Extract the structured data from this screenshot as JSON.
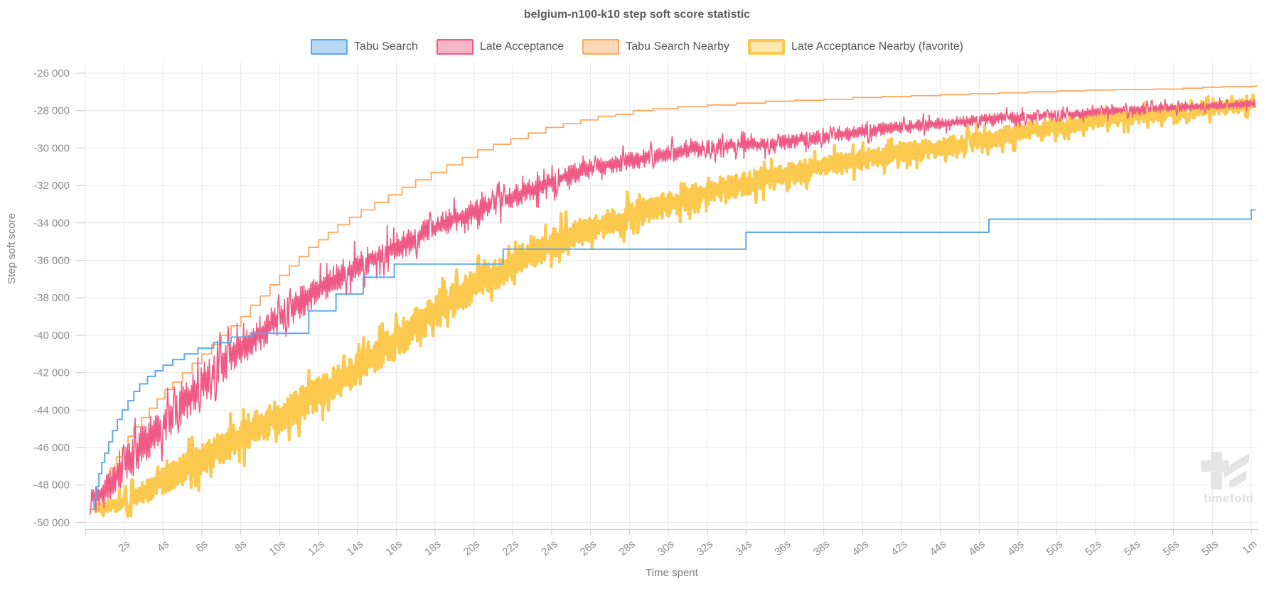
{
  "title": "belgium-n100-k10 step soft score statistic",
  "watermark": {
    "label": "timefold"
  },
  "chart_data": {
    "type": "line",
    "title": "belgium-n100-k10 step soft score statistic",
    "xlabel": "Time spent",
    "ylabel": "Step soft score",
    "xlim": [
      0,
      60.5
    ],
    "ylim": [
      -50000,
      -26000
    ],
    "grid": true,
    "legend_position": "top",
    "y_ticks": [
      {
        "v": -26000,
        "label": "-26 000"
      },
      {
        "v": -28000,
        "label": "-28 000"
      },
      {
        "v": -30000,
        "label": "-30 000"
      },
      {
        "v": -32000,
        "label": "-32 000"
      },
      {
        "v": -34000,
        "label": "-34 000"
      },
      {
        "v": -36000,
        "label": "-36 000"
      },
      {
        "v": -38000,
        "label": "-38 000"
      },
      {
        "v": -40000,
        "label": "-40 000"
      },
      {
        "v": -42000,
        "label": "-42 000"
      },
      {
        "v": -44000,
        "label": "-44 000"
      },
      {
        "v": -46000,
        "label": "-46 000"
      },
      {
        "v": -48000,
        "label": "-48 000"
      },
      {
        "v": -50000,
        "label": "-50 000"
      }
    ],
    "x_ticks": [
      {
        "v": 2,
        "label": "2s"
      },
      {
        "v": 4,
        "label": "4s"
      },
      {
        "v": 6,
        "label": "6s"
      },
      {
        "v": 8,
        "label": "8s"
      },
      {
        "v": 10,
        "label": "10s"
      },
      {
        "v": 12,
        "label": "12s"
      },
      {
        "v": 14,
        "label": "14s"
      },
      {
        "v": 16,
        "label": "16s"
      },
      {
        "v": 18,
        "label": "18s"
      },
      {
        "v": 20,
        "label": "20s"
      },
      {
        "v": 22,
        "label": "22s"
      },
      {
        "v": 24,
        "label": "24s"
      },
      {
        "v": 26,
        "label": "26s"
      },
      {
        "v": 28,
        "label": "28s"
      },
      {
        "v": 30,
        "label": "30s"
      },
      {
        "v": 32,
        "label": "32s"
      },
      {
        "v": 34,
        "label": "34s"
      },
      {
        "v": 36,
        "label": "36s"
      },
      {
        "v": 38,
        "label": "38s"
      },
      {
        "v": 40,
        "label": "40s"
      },
      {
        "v": 42,
        "label": "42s"
      },
      {
        "v": 44,
        "label": "44s"
      },
      {
        "v": 46,
        "label": "46s"
      },
      {
        "v": 48,
        "label": "48s"
      },
      {
        "v": 50,
        "label": "50s"
      },
      {
        "v": 52,
        "label": "52s"
      },
      {
        "v": 54,
        "label": "54s"
      },
      {
        "v": 56,
        "label": "56s"
      },
      {
        "v": 58,
        "label": "58s"
      },
      {
        "v": 60,
        "label": "1m"
      }
    ],
    "style": {
      "grid_color": "#e7e7e7",
      "axis_color": "#cfcfcf",
      "tick_text_color": "#8c8c8c",
      "watermark_color": "#e4e4e4"
    },
    "draw_order": [
      3,
      2,
      1,
      0
    ],
    "series": [
      {
        "name": "Tabu Search",
        "color": "#5ea9e8",
        "style": "step",
        "line_width": 2,
        "legend_border_width": 2.5,
        "points": [
          [
            0.35,
            -49300
          ],
          [
            0.45,
            -48700
          ],
          [
            0.55,
            -48100
          ],
          [
            0.7,
            -47400
          ],
          [
            0.85,
            -46800
          ],
          [
            1.0,
            -46300
          ],
          [
            1.2,
            -45700
          ],
          [
            1.4,
            -45100
          ],
          [
            1.65,
            -44500
          ],
          [
            1.9,
            -44000
          ],
          [
            2.2,
            -43500
          ],
          [
            2.5,
            -43000
          ],
          [
            2.8,
            -42600
          ],
          [
            3.2,
            -42200
          ],
          [
            3.6,
            -41900
          ],
          [
            4.0,
            -41600
          ],
          [
            4.5,
            -41300
          ],
          [
            5.1,
            -41000
          ],
          [
            5.8,
            -40700
          ],
          [
            6.6,
            -40400
          ],
          [
            7.5,
            -40100
          ],
          [
            8.6,
            -39900
          ],
          [
            11.5,
            -38700
          ],
          [
            12.9,
            -37800
          ],
          [
            14.3,
            -36900
          ],
          [
            15.9,
            -36200
          ],
          [
            21.5,
            -35400
          ],
          [
            34.0,
            -34500
          ],
          [
            46.5,
            -33800
          ],
          [
            60.0,
            -33300
          ],
          [
            60.2,
            -33300
          ]
        ]
      },
      {
        "name": "Late Acceptance",
        "color": "#ee5a85",
        "style": "noisy",
        "line_width": 1.6,
        "legend_border_width": 2.5,
        "noise_seed": 7,
        "anchors": [
          [
            0.25,
            -48800,
            600
          ],
          [
            1,
            -48300,
            900
          ],
          [
            2,
            -47000,
            1300
          ],
          [
            3,
            -45800,
            1400
          ],
          [
            4,
            -44700,
            1400
          ],
          [
            5,
            -43600,
            1400
          ],
          [
            6,
            -42600,
            1300
          ],
          [
            7,
            -41600,
            1300
          ],
          [
            8,
            -40700,
            1200
          ],
          [
            9,
            -39900,
            1200
          ],
          [
            10,
            -39100,
            1100
          ],
          [
            11,
            -38300,
            1100
          ],
          [
            12,
            -37600,
            1000
          ],
          [
            13,
            -36900,
            1000
          ],
          [
            14,
            -36300,
            1000
          ],
          [
            15,
            -35800,
            950
          ],
          [
            16,
            -35300,
            950
          ],
          [
            17,
            -34800,
            900
          ],
          [
            18,
            -34300,
            900
          ],
          [
            19,
            -33800,
            850
          ],
          [
            20,
            -33400,
            800
          ],
          [
            21,
            -33000,
            800
          ],
          [
            22,
            -32600,
            750
          ],
          [
            23,
            -32200,
            750
          ],
          [
            24,
            -31800,
            700
          ],
          [
            25,
            -31400,
            700
          ],
          [
            26,
            -31100,
            650
          ],
          [
            27,
            -30900,
            650
          ],
          [
            28,
            -30700,
            600
          ],
          [
            29,
            -30500,
            600
          ],
          [
            30,
            -30300,
            600
          ],
          [
            31,
            -30100,
            550
          ],
          [
            32,
            -30000,
            550
          ],
          [
            33,
            -29900,
            550
          ],
          [
            34,
            -29800,
            500
          ],
          [
            35,
            -29850,
            500
          ],
          [
            36,
            -29700,
            500
          ],
          [
            37,
            -29500,
            480
          ],
          [
            38,
            -29400,
            480
          ],
          [
            39,
            -29250,
            460
          ],
          [
            40,
            -29100,
            450
          ],
          [
            41,
            -29000,
            450
          ],
          [
            42,
            -28900,
            430
          ],
          [
            43,
            -28800,
            430
          ],
          [
            44,
            -28700,
            420
          ],
          [
            45,
            -28600,
            400
          ],
          [
            46,
            -28500,
            400
          ],
          [
            47,
            -28400,
            380
          ],
          [
            48,
            -28350,
            380
          ],
          [
            49,
            -28300,
            360
          ],
          [
            50,
            -28250,
            360
          ],
          [
            51,
            -28200,
            350
          ],
          [
            52,
            -28100,
            350
          ],
          [
            53,
            -28000,
            330
          ],
          [
            54,
            -27950,
            330
          ],
          [
            55,
            -27900,
            320
          ],
          [
            56,
            -27850,
            320
          ],
          [
            57,
            -27800,
            300
          ],
          [
            58,
            -27750,
            300
          ],
          [
            59,
            -27700,
            280
          ],
          [
            60.2,
            -27600,
            280
          ]
        ]
      },
      {
        "name": "Tabu Search Nearby",
        "color": "#fba85c",
        "style": "step",
        "line_width": 1.8,
        "legend_border_width": 2.5,
        "points": [
          [
            0.5,
            -49400
          ],
          [
            0.7,
            -48700
          ],
          [
            0.9,
            -48100
          ],
          [
            1.1,
            -47600
          ],
          [
            1.3,
            -47100
          ],
          [
            1.6,
            -46500
          ],
          [
            1.9,
            -46000
          ],
          [
            2.2,
            -45400
          ],
          [
            2.5,
            -44900
          ],
          [
            2.9,
            -44400
          ],
          [
            3.3,
            -43900
          ],
          [
            3.7,
            -43400
          ],
          [
            4.1,
            -42900
          ],
          [
            4.5,
            -42500
          ],
          [
            5.0,
            -42000
          ],
          [
            5.5,
            -41500
          ],
          [
            6.0,
            -41000
          ],
          [
            6.5,
            -40500
          ],
          [
            7.0,
            -40000
          ],
          [
            7.5,
            -39500
          ],
          [
            8.0,
            -39000
          ],
          [
            8.5,
            -38400
          ],
          [
            9.0,
            -37900
          ],
          [
            9.5,
            -37300
          ],
          [
            10.0,
            -36800
          ],
          [
            10.5,
            -36300
          ],
          [
            11.0,
            -35800
          ],
          [
            11.5,
            -35300
          ],
          [
            12.0,
            -34900
          ],
          [
            12.5,
            -34500
          ],
          [
            13.0,
            -34100
          ],
          [
            13.6,
            -33700
          ],
          [
            14.2,
            -33300
          ],
          [
            14.9,
            -32900
          ],
          [
            15.6,
            -32500
          ],
          [
            16.3,
            -32100
          ],
          [
            17.0,
            -31700
          ],
          [
            17.8,
            -31300
          ],
          [
            18.6,
            -30900
          ],
          [
            19.4,
            -30500
          ],
          [
            20.2,
            -30100
          ],
          [
            21.0,
            -29800
          ],
          [
            21.9,
            -29500
          ],
          [
            22.8,
            -29200
          ],
          [
            23.7,
            -28900
          ],
          [
            24.6,
            -28700
          ],
          [
            25.5,
            -28500
          ],
          [
            26.4,
            -28300
          ],
          [
            27.3,
            -28200
          ],
          [
            28.2,
            -28000
          ],
          [
            29.2,
            -27900
          ],
          [
            30.5,
            -27800
          ],
          [
            32.0,
            -27700
          ],
          [
            33.5,
            -27600
          ],
          [
            35.0,
            -27500
          ],
          [
            36.5,
            -27450
          ],
          [
            38.0,
            -27400
          ],
          [
            39.5,
            -27300
          ],
          [
            41.0,
            -27250
          ],
          [
            42.5,
            -27200
          ],
          [
            44.0,
            -27150
          ],
          [
            45.5,
            -27100
          ],
          [
            47.0,
            -27050
          ],
          [
            48.5,
            -27000
          ],
          [
            50.0,
            -26950
          ],
          [
            51.5,
            -26900
          ],
          [
            53.0,
            -26870
          ],
          [
            55.0,
            -26850
          ],
          [
            56.5,
            -26800
          ],
          [
            57.5,
            -26750
          ],
          [
            58.5,
            -26720
          ],
          [
            60.0,
            -26700
          ],
          [
            60.3,
            -26700
          ]
        ]
      },
      {
        "name": "Late Acceptance Nearby (favorite)",
        "color": "#fcc94f",
        "style": "noisy",
        "line_width": 4.2,
        "legend_border_width": 4.5,
        "noise_seed": 13,
        "anchors": [
          [
            0.5,
            -49300,
            350
          ],
          [
            1,
            -49200,
            400
          ],
          [
            2,
            -48900,
            600
          ],
          [
            3,
            -48400,
            800
          ],
          [
            4,
            -47800,
            900
          ],
          [
            5,
            -47200,
            1000
          ],
          [
            6,
            -46600,
            1100
          ],
          [
            7,
            -46000,
            1100
          ],
          [
            8,
            -45400,
            1200
          ],
          [
            9,
            -44800,
            1200
          ],
          [
            10,
            -44300,
            1200
          ],
          [
            11,
            -43700,
            1200
          ],
          [
            12,
            -43100,
            1200
          ],
          [
            13,
            -42500,
            1200
          ],
          [
            14,
            -41900,
            1200
          ],
          [
            15,
            -41100,
            1200
          ],
          [
            16,
            -40300,
            1200
          ],
          [
            17,
            -39500,
            1150
          ],
          [
            18,
            -38800,
            1150
          ],
          [
            19,
            -38100,
            1100
          ],
          [
            20,
            -37400,
            1100
          ],
          [
            21,
            -36800,
            1050
          ],
          [
            22,
            -36200,
            1050
          ],
          [
            23,
            -35600,
            1000
          ],
          [
            24,
            -35100,
            1000
          ],
          [
            25,
            -34700,
            950
          ],
          [
            26,
            -34300,
            950
          ],
          [
            27,
            -34000,
            900
          ],
          [
            28,
            -33600,
            900
          ],
          [
            29,
            -33300,
            880
          ],
          [
            30,
            -33000,
            850
          ],
          [
            31,
            -32700,
            850
          ],
          [
            32,
            -32400,
            820
          ],
          [
            33,
            -32100,
            800
          ],
          [
            34,
            -31900,
            800
          ],
          [
            35,
            -31600,
            780
          ],
          [
            36,
            -31400,
            760
          ],
          [
            37,
            -31200,
            750
          ],
          [
            38,
            -31000,
            730
          ],
          [
            39,
            -30800,
            720
          ],
          [
            40,
            -30600,
            700
          ],
          [
            41,
            -30400,
            700
          ],
          [
            42,
            -30200,
            680
          ],
          [
            43,
            -30100,
            660
          ],
          [
            44,
            -30000,
            650
          ],
          [
            45,
            -29800,
            640
          ],
          [
            46,
            -29600,
            620
          ],
          [
            47,
            -29400,
            620
          ],
          [
            48,
            -29200,
            600
          ],
          [
            49,
            -29000,
            600
          ],
          [
            50,
            -28900,
            580
          ],
          [
            51,
            -28700,
            570
          ],
          [
            52,
            -28500,
            560
          ],
          [
            53,
            -28400,
            550
          ],
          [
            54,
            -28300,
            540
          ],
          [
            55,
            -28200,
            530
          ],
          [
            56,
            -28100,
            520
          ],
          [
            57,
            -28000,
            500
          ],
          [
            58,
            -27900,
            480
          ],
          [
            59,
            -27800,
            460
          ],
          [
            60.2,
            -27650,
            440
          ]
        ]
      }
    ]
  }
}
